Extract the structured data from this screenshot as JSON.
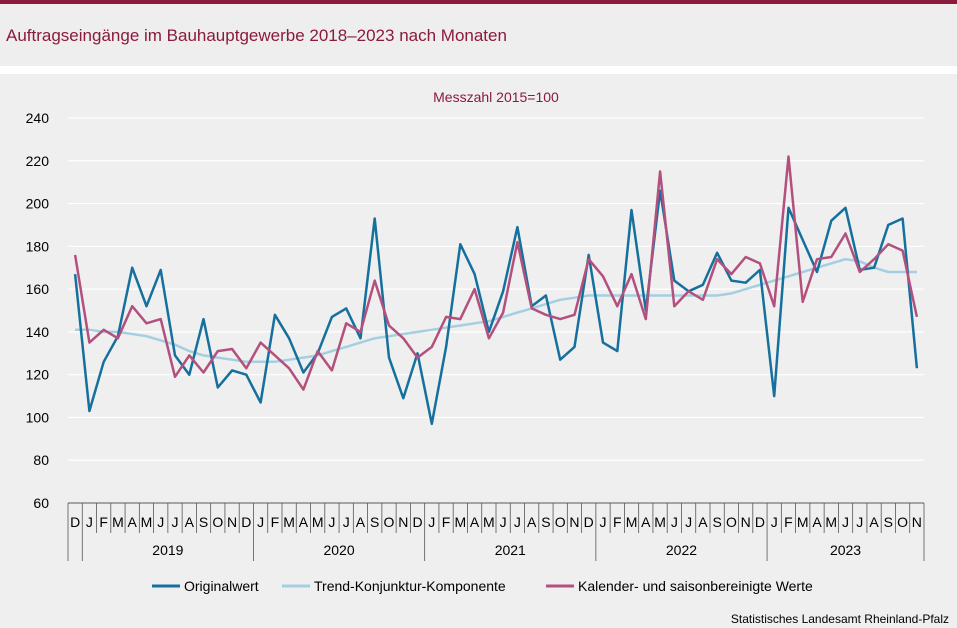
{
  "page": {
    "title": "Auftragseingänge im Bauhauptgewerbe 2018–2023 nach Monaten",
    "source": "Statistisches Landesamt Rheinland-Pfalz"
  },
  "colors": {
    "accent": "#8b1a3b",
    "original": "#16709d",
    "trend": "#a5cfe0",
    "adjusted": "#b3507e"
  },
  "chart_data": {
    "type": "line",
    "subtitle": "Messzahl 2015=100",
    "ylim": [
      60,
      240
    ],
    "yticks": [
      60,
      80,
      100,
      120,
      140,
      160,
      180,
      200,
      220,
      240
    ],
    "grid": "horizontal",
    "legend_position": "bottom",
    "month_labels": [
      "D",
      "J",
      "F",
      "M",
      "A",
      "M",
      "J",
      "J",
      "A",
      "S",
      "O",
      "N",
      "D",
      "J",
      "F",
      "M",
      "A",
      "M",
      "J",
      "J",
      "A",
      "S",
      "O",
      "N",
      "D",
      "J",
      "F",
      "M",
      "A",
      "M",
      "J",
      "J",
      "A",
      "S",
      "O",
      "N",
      "D",
      "J",
      "F",
      "M",
      "A",
      "M",
      "J",
      "J",
      "A",
      "S",
      "O",
      "N",
      "D",
      "J",
      "F",
      "M",
      "A",
      "M",
      "J",
      "J",
      "A",
      "S",
      "O",
      "N"
    ],
    "years": [
      {
        "label": "2019",
        "start": 1,
        "end": 12
      },
      {
        "label": "2020",
        "start": 13,
        "end": 24
      },
      {
        "label": "2021",
        "start": 25,
        "end": 36
      },
      {
        "label": "2022",
        "start": 37,
        "end": 48
      },
      {
        "label": "2023",
        "start": 49,
        "end": 59
      }
    ],
    "series": [
      {
        "name": "Originalwert",
        "color": "#16709d",
        "width": 2.5,
        "values": [
          167,
          103,
          126,
          138,
          170,
          152,
          169,
          129,
          120,
          146,
          114,
          122,
          120,
          107,
          148,
          137,
          121,
          130,
          147,
          151,
          137,
          193,
          128,
          109,
          130,
          97,
          133,
          181,
          167,
          140,
          159,
          189,
          152,
          157,
          127,
          133,
          176,
          135,
          131,
          197,
          150,
          206,
          164,
          159,
          162,
          177,
          164,
          163,
          169,
          110,
          198,
          183,
          168,
          192,
          198,
          169,
          170,
          190,
          193,
          123
        ]
      },
      {
        "name": "Trend-Konjunktur-Komponente",
        "color": "#a5cfe0",
        "width": 2.5,
        "values": [
          141,
          141,
          140,
          140,
          139,
          138,
          136,
          134,
          131,
          129,
          128,
          127,
          126,
          126,
          126,
          127,
          128,
          129,
          131,
          133,
          135,
          137,
          138,
          139,
          140,
          141,
          142,
          143,
          144,
          145,
          147,
          149,
          151,
          153,
          155,
          156,
          157,
          157,
          157,
          157,
          157,
          157,
          157,
          157,
          157,
          157,
          158,
          160,
          162,
          164,
          166,
          168,
          170,
          172,
          174,
          173,
          170,
          168,
          168,
          168
        ]
      },
      {
        "name": "Kalender- und saisonbereinigte Werte",
        "color": "#b3507e",
        "width": 2.5,
        "values": [
          176,
          135,
          141,
          137,
          152,
          144,
          146,
          119,
          129,
          121,
          131,
          132,
          123,
          135,
          129,
          123,
          113,
          131,
          122,
          144,
          140,
          164,
          143,
          137,
          128,
          133,
          147,
          146,
          160,
          137,
          149,
          182,
          151,
          148,
          146,
          148,
          174,
          166,
          152,
          167,
          146,
          215,
          152,
          159,
          155,
          174,
          167,
          175,
          172,
          152,
          222,
          154,
          174,
          175,
          186,
          168,
          174,
          181,
          178,
          147
        ]
      }
    ]
  }
}
